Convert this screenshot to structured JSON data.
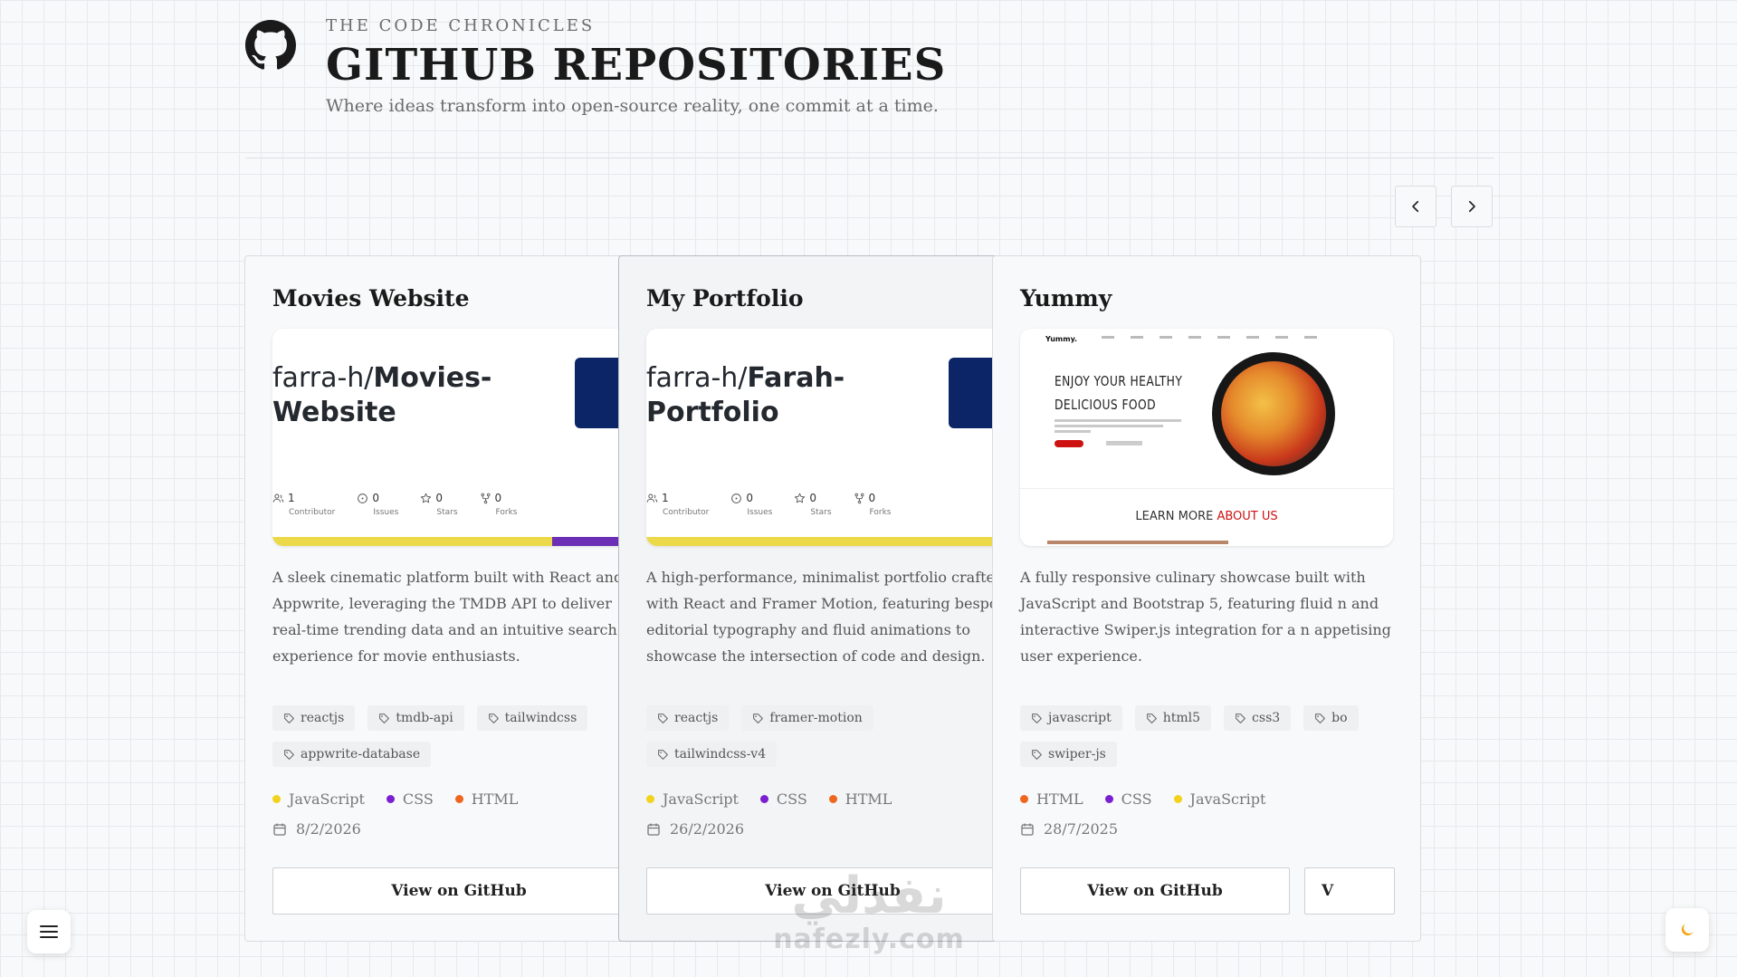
{
  "header": {
    "eyebrow": "THE CODE CHRONICLES",
    "title": "GITHUB REPOSITORIES",
    "subtitle": "Where ideas transform into open-source reality, one commit at a time."
  },
  "nav": {
    "prev_icon": "chevron-left-icon",
    "next_icon": "chevron-right-icon"
  },
  "cards": [
    {
      "title": "Movies Website",
      "preview": {
        "owner": "farra-h/",
        "repo_line1": "Movies-",
        "repo_line2": "Website",
        "stats": [
          {
            "icon": "people-icon",
            "value": "1",
            "label": "Contributor"
          },
          {
            "icon": "issue-icon",
            "value": "0",
            "label": "Issues"
          },
          {
            "icon": "star-icon",
            "value": "0",
            "label": "Stars"
          },
          {
            "icon": "fork-icon",
            "value": "0",
            "label": "Forks"
          }
        ],
        "language_bar": [
          {
            "color": "#ecd94a",
            "fraction": 0.75
          },
          {
            "color": "#6a2fb5",
            "fraction": 0.25
          }
        ]
      },
      "description": "A sleek cinematic platform built with React and Appwrite, leveraging the TMDB API to deliver real-time trending data and an intuitive search experience for movie enthusiasts.",
      "tags": [
        "reactjs",
        "tmdb-api",
        "tailwindcss",
        "appwrite-database"
      ],
      "languages": [
        {
          "name": "JavaScript",
          "color": "#f1d21c"
        },
        {
          "name": "CSS",
          "color": "#7a1fd1"
        },
        {
          "name": "HTML",
          "color": "#f0661e"
        }
      ],
      "date": "8/2/2026",
      "button": "View on GitHub"
    },
    {
      "title": "My Portfolio",
      "preview": {
        "owner": "farra-h/",
        "repo_line1": "Farah-",
        "repo_line2": "Portfolio",
        "stats": [
          {
            "icon": "people-icon",
            "value": "1",
            "label": "Contributor"
          },
          {
            "icon": "issue-icon",
            "value": "0",
            "label": "Issues"
          },
          {
            "icon": "star-icon",
            "value": "0",
            "label": "Stars"
          },
          {
            "icon": "fork-icon",
            "value": "0",
            "label": "Forks"
          }
        ],
        "language_bar": [
          {
            "color": "#ecd94a",
            "fraction": 1.0
          }
        ]
      },
      "description": "A high-performance, minimalist portfolio crafted with React and Framer Motion, featuring bespoke editorial typography and fluid animations to showcase the intersection of code and design.",
      "tags": [
        "reactjs",
        "framer-motion",
        "tailwindcss-v4"
      ],
      "languages": [
        {
          "name": "JavaScript",
          "color": "#f1d21c"
        },
        {
          "name": "CSS",
          "color": "#7a1fd1"
        },
        {
          "name": "HTML",
          "color": "#f0661e"
        }
      ],
      "date": "26/2/2026",
      "button": "View on GitHub"
    },
    {
      "title": "Yummy",
      "preview": {
        "brand": "Yummy.",
        "headline_line1": "ENJOY YOUR HEALTHY",
        "headline_line2": "DELICIOUS FOOD",
        "learn_more": "LEARN MORE",
        "about_us": "ABOUT US"
      },
      "description": "A fully responsive culinary showcase built with JavaScript and Bootstrap 5, featuring fluid n and interactive Swiper.js integration for a n appetising user experience.",
      "tags": [
        "javascript",
        "html5",
        "css3",
        "bo",
        "swiper-js"
      ],
      "languages": [
        {
          "name": "HTML",
          "color": "#f0661e"
        },
        {
          "name": "CSS",
          "color": "#7a1fd1"
        },
        {
          "name": "JavaScript",
          "color": "#f1d21c"
        }
      ],
      "date": "28/7/2025",
      "button": "View on GitHub",
      "button2": "V"
    }
  ],
  "floating": {
    "menu_icon": "hamburger-menu-icon",
    "theme_icon": "moon-icon"
  },
  "watermark": {
    "arabic": "نفذلي",
    "latin": "nafezly.com"
  }
}
